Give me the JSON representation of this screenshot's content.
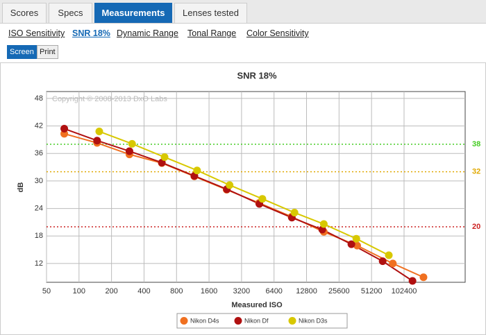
{
  "tabs": [
    "Scores",
    "Specs",
    "Measurements",
    "Lenses tested"
  ],
  "subtabs": [
    "ISO Sensitivity",
    "SNR 18%",
    "Dynamic Range",
    "Tonal Range",
    "Color Sensitivity"
  ],
  "buttons": [
    "Screen",
    "Print"
  ],
  "chart_data": {
    "type": "line",
    "title": "SNR 18%",
    "annotation": "Copyright © 2008-2013 DxO Labs",
    "x_label": "Measured ISO",
    "y_label": "dB",
    "x_log": true,
    "grid": true,
    "xlim": [
      50,
      377000
    ],
    "xticks": [
      50,
      100,
      200,
      400,
      800,
      1600,
      3200,
      6400,
      12800,
      25600,
      51200,
      102400
    ],
    "ylim": [
      7.9,
      49.5
    ],
    "yticks": [
      12,
      18,
      24,
      30,
      36,
      42,
      48
    ],
    "reference_lines": [
      {
        "value": 38,
        "color": "#44cc22"
      },
      {
        "value": 32,
        "color": "#e0a800"
      },
      {
        "value": 20,
        "color": "#cc2222"
      }
    ],
    "series": [
      {
        "name": "Nikon D4s",
        "color": "#f07020",
        "x": [
          73,
          147,
          293,
          585,
          1170,
          2330,
          4650,
          9300,
          18500,
          37700,
          80600,
          155000
        ],
        "values": [
          40.3,
          38.3,
          35.8,
          33.9,
          31.0,
          28.1,
          25.2,
          22.2,
          18.9,
          15.9,
          12.0,
          9.0
        ]
      },
      {
        "name": "Nikon Df",
        "color": "#b01010",
        "x": [
          73,
          147,
          293,
          585,
          1170,
          2340,
          4680,
          9360,
          17900,
          33300,
          64900,
          122600
        ],
        "values": [
          41.4,
          38.8,
          36.5,
          34.0,
          31.1,
          28.2,
          25.0,
          22.0,
          19.4,
          16.2,
          12.5,
          8.2
        ]
      },
      {
        "name": "Nikon D3s",
        "color": "#d8c800",
        "x": [
          154,
          310,
          620,
          1240,
          2480,
          4990,
          9900,
          18500,
          37000,
          74000
        ],
        "values": [
          40.8,
          38.1,
          35.2,
          32.3,
          29.1,
          26.1,
          23.1,
          20.6,
          17.4,
          13.8
        ]
      }
    ]
  }
}
